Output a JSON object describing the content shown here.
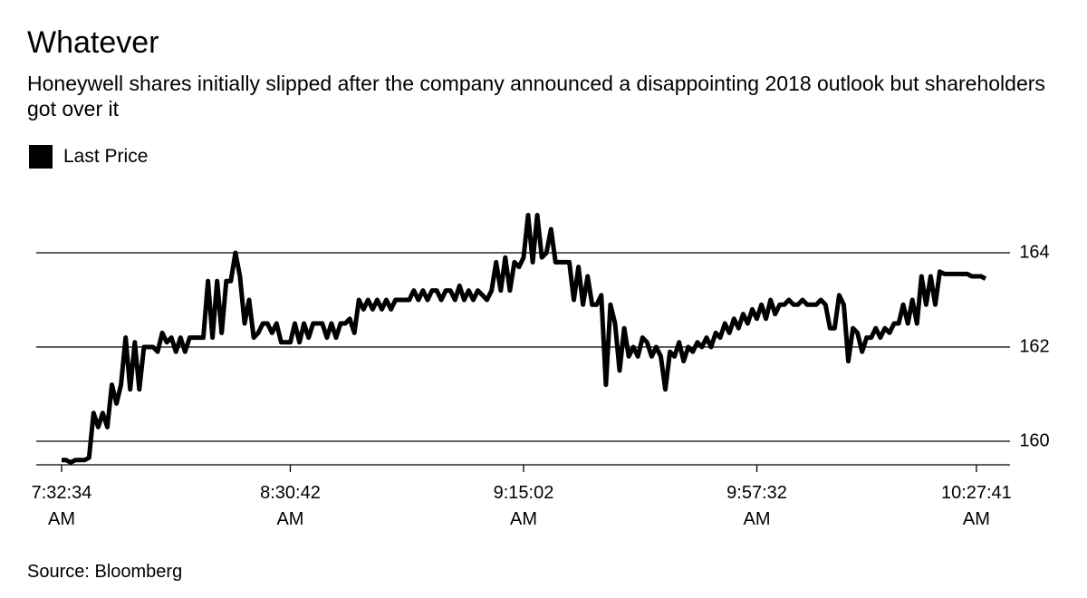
{
  "chart_data": {
    "type": "line",
    "title": "Whatever",
    "subtitle": "Honeywell shares initially slipped after the company announced a disappointing 2018 outlook but shareholders got over it",
    "source": "Source: Bloomberg",
    "categories": [
      "7:32:34 AM",
      null,
      null,
      null,
      null,
      null,
      null,
      null,
      null,
      null,
      null,
      null,
      null,
      null,
      null,
      null,
      null,
      null,
      null,
      null,
      null,
      null,
      null,
      null,
      null,
      null,
      null,
      null,
      null,
      null,
      null,
      null,
      null,
      null,
      null,
      null,
      null,
      null,
      null,
      null,
      null,
      null,
      null,
      null,
      null,
      null,
      null,
      null,
      null,
      null,
      "8:30:42 AM",
      null,
      null,
      null,
      null,
      null,
      null,
      null,
      null,
      null,
      null,
      null,
      null,
      null,
      null,
      null,
      null,
      null,
      null,
      null,
      null,
      null,
      null,
      null,
      null,
      null,
      null,
      null,
      null,
      null,
      null,
      null,
      null,
      null,
      null,
      null,
      null,
      null,
      null,
      null,
      null,
      null,
      null,
      null,
      null,
      null,
      null,
      null,
      null,
      null,
      null,
      "9:15:02 AM",
      null,
      null,
      null,
      null,
      null,
      null,
      null,
      null,
      null,
      null,
      null,
      null,
      null,
      null,
      null,
      null,
      null,
      null,
      null,
      null,
      null,
      null,
      null,
      null,
      null,
      null,
      null,
      null,
      null,
      null,
      null,
      null,
      null,
      null,
      null,
      null,
      null,
      null,
      null,
      null,
      null,
      null,
      null,
      null,
      null,
      null,
      null,
      null,
      null,
      null,
      "9:57:32 AM",
      null,
      null,
      null,
      null,
      null,
      null,
      null,
      null,
      null,
      null,
      null,
      null,
      null,
      null,
      null,
      null,
      null,
      null,
      null,
      null,
      null,
      null,
      null,
      null,
      null,
      null,
      null,
      null,
      null,
      null,
      null,
      null,
      null,
      null,
      null,
      null,
      null,
      null,
      null,
      null,
      null,
      null,
      null,
      null,
      null,
      null,
      null,
      "10:27:41 AM",
      null,
      null
    ],
    "series": [
      {
        "name": "Last Price",
        "color": "#000000",
        "values": [
          159.6,
          159.6,
          159.55,
          159.6,
          159.6,
          159.6,
          159.65,
          160.6,
          160.3,
          160.6,
          160.3,
          161.2,
          160.8,
          161.2,
          162.2,
          161.1,
          162.1,
          161.1,
          162.0,
          162.0,
          162.0,
          161.9,
          162.3,
          162.1,
          162.2,
          161.9,
          162.2,
          161.9,
          162.2,
          162.2,
          162.2,
          162.2,
          163.4,
          162.2,
          163.4,
          162.3,
          163.4,
          163.4,
          164.0,
          163.5,
          162.5,
          163.0,
          162.2,
          162.3,
          162.5,
          162.5,
          162.3,
          162.5,
          162.1,
          162.1,
          162.1,
          162.5,
          162.1,
          162.5,
          162.2,
          162.5,
          162.5,
          162.5,
          162.2,
          162.5,
          162.2,
          162.5,
          162.5,
          162.6,
          162.3,
          163.0,
          162.8,
          163.0,
          162.8,
          163.0,
          162.8,
          163.0,
          162.8,
          163.0,
          163.0,
          163.0,
          163.0,
          163.2,
          163.0,
          163.2,
          163.0,
          163.2,
          163.2,
          163.0,
          163.2,
          163.2,
          163.0,
          163.3,
          163.0,
          163.2,
          163.0,
          163.2,
          163.1,
          163.0,
          163.2,
          163.8,
          163.2,
          163.9,
          163.2,
          163.8,
          163.7,
          163.9,
          164.8,
          163.8,
          164.8,
          163.9,
          164.0,
          164.5,
          163.8,
          163.8,
          163.8,
          163.8,
          163.0,
          163.7,
          162.9,
          163.5,
          162.9,
          162.9,
          163.1,
          161.2,
          162.9,
          162.5,
          161.5,
          162.4,
          161.8,
          162.0,
          161.8,
          162.2,
          162.1,
          161.8,
          162.0,
          161.8,
          161.1,
          161.9,
          161.8,
          162.1,
          161.7,
          162.0,
          161.9,
          162.1,
          162.0,
          162.2,
          162.0,
          162.3,
          162.2,
          162.5,
          162.3,
          162.6,
          162.4,
          162.7,
          162.5,
          162.8,
          162.6,
          162.9,
          162.6,
          163.0,
          162.7,
          162.9,
          162.9,
          163.0,
          162.9,
          162.9,
          163.0,
          162.9,
          162.9,
          162.9,
          163.0,
          162.9,
          162.4,
          162.4,
          163.1,
          162.9,
          161.7,
          162.4,
          162.3,
          161.9,
          162.2,
          162.2,
          162.4,
          162.2,
          162.4,
          162.3,
          162.5,
          162.5,
          162.9,
          162.5,
          163.0,
          162.5,
          163.5,
          162.9,
          163.5,
          162.9,
          163.6,
          163.55,
          163.55,
          163.55,
          163.55,
          163.55,
          163.55,
          163.5,
          163.5,
          163.5,
          163.45
        ]
      }
    ],
    "ylim": [
      159.5,
      165
    ],
    "yticks": [
      160,
      162,
      164
    ],
    "grid": true
  }
}
